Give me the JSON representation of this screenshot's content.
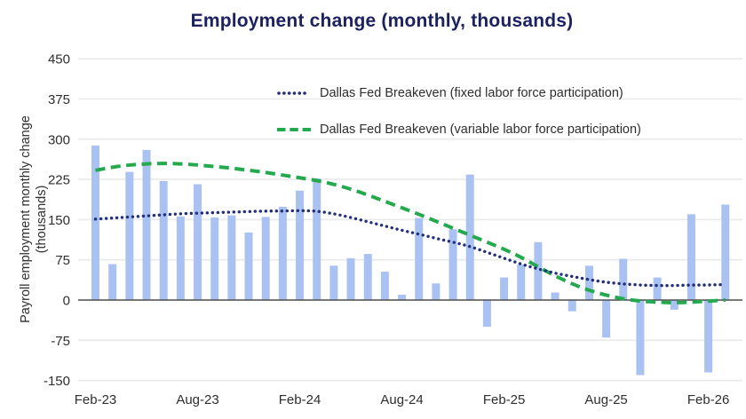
{
  "title": "Employment change (monthly, thousands)",
  "y_axis": {
    "line1": "Payroll employment monthly change",
    "line2": "(thousands)"
  },
  "legend": {
    "fixed_label": "Dallas Fed Breakeven (fixed labor force participation)",
    "variable_label": "Dallas Fed Breakeven (variable labor force participation)"
  },
  "colors": {
    "bar": "#a9c2f2",
    "fixed_line": "#232f7c",
    "variable_line": "#25a94f",
    "title_text": "#1c2260",
    "axis_text": "#2e2e2e",
    "gridline": "#eaeaea",
    "zero_line": "#4d4d4d"
  },
  "chart_data": {
    "type": "bar",
    "title": "Employment change (monthly, thousands)",
    "ylabel": "Payroll employment monthly change (thousands)",
    "ylim": [
      -150,
      450
    ],
    "y_ticks": [
      450,
      375,
      300,
      225,
      150,
      75,
      0,
      -75,
      -150
    ],
    "x_tick_labels": [
      "Feb-23",
      "Aug-23",
      "Feb-24",
      "Aug-24",
      "Feb-25",
      "Aug-25",
      "Feb-26"
    ],
    "x_tick_indices": [
      0,
      6,
      12,
      18,
      24,
      30,
      36
    ],
    "grid": true,
    "legend_position": "upper-center-overlay",
    "categories": [
      "Feb-23",
      "Mar-23",
      "Apr-23",
      "May-23",
      "Jun-23",
      "Jul-23",
      "Aug-23",
      "Sep-23",
      "Oct-23",
      "Nov-23",
      "Dec-23",
      "Jan-24",
      "Feb-24",
      "Mar-24",
      "Apr-24",
      "May-24",
      "Jun-24",
      "Jul-24",
      "Aug-24",
      "Sep-24",
      "Oct-24",
      "Nov-24",
      "Dec-24",
      "Jan-25",
      "Feb-25",
      "Mar-25",
      "Apr-25",
      "May-25",
      "Jun-25",
      "Jul-25",
      "Aug-25",
      "Sep-25",
      "Oct-25",
      "Nov-25",
      "Dec-25",
      "Jan-26",
      "Feb-26",
      "Mar-26"
    ],
    "bar_series_name": "Payroll employment monthly change",
    "values": [
      288,
      67,
      239,
      280,
      222,
      156,
      216,
      154,
      158,
      126,
      155,
      174,
      204,
      227,
      64,
      78,
      86,
      53,
      10,
      153,
      31,
      132,
      234,
      -50,
      42,
      66,
      108,
      14,
      -21,
      64,
      -70,
      77,
      -140,
      42,
      -18,
      160,
      -135,
      178
    ],
    "series": [
      {
        "name": "Dallas Fed Breakeven (fixed labor force participation)",
        "style": "dotted",
        "values": [
          151,
          153,
          155,
          157,
          159,
          161,
          162,
          163,
          164,
          165,
          166,
          166,
          167,
          166,
          161,
          154,
          146,
          138,
          130,
          123,
          115,
          108,
          100,
          89,
          78,
          67,
          58,
          50,
          44,
          38,
          33,
          30,
          28,
          27,
          27,
          28,
          28,
          29
        ]
      },
      {
        "name": "Dallas Fed Breakeven (variable labor force participation)",
        "style": "dashed",
        "values": [
          242,
          248,
          252,
          254,
          255,
          254,
          252,
          249,
          246,
          242,
          238,
          233,
          228,
          223,
          216,
          207,
          196,
          184,
          172,
          160,
          147,
          134,
          121,
          108,
          95,
          80,
          62,
          45,
          30,
          18,
          9,
          2,
          -2,
          -4,
          -5,
          -4,
          -2,
          0
        ]
      }
    ]
  }
}
